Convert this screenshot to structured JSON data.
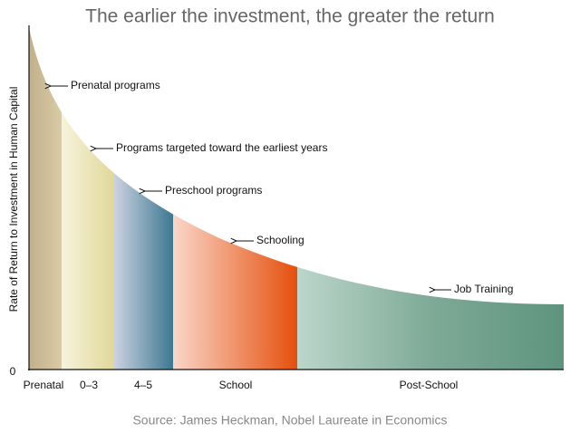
{
  "title": "The earlier the investment, the greater the return",
  "y_axis": {
    "label": "Rate of Return to Investment in Human Capital",
    "zero": "0"
  },
  "stages": [
    "Prenatal",
    "0–3",
    "4–5",
    "School",
    "Post-School"
  ],
  "annotations": [
    "Prenatal programs",
    "Programs targeted toward the earliest years",
    "Preschool programs",
    "Schooling",
    "Job Training"
  ],
  "source": "Source: James Heckman, Nobel Laureate in Economics"
}
